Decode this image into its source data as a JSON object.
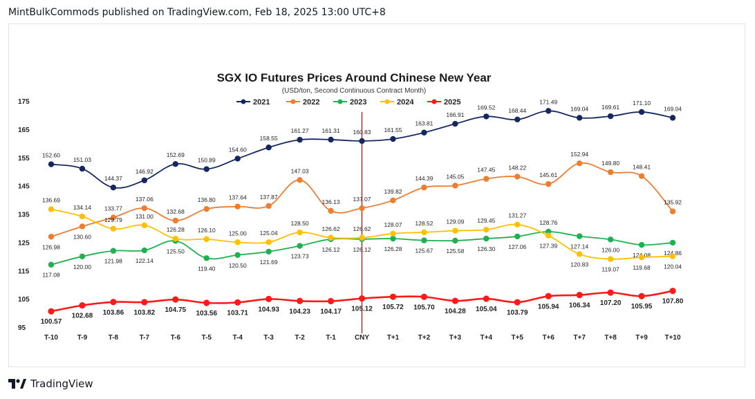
{
  "header": {
    "text": "MintBulkCommods published on TradingView.com, Feb 18, 2025 13:00 UTC+8"
  },
  "footer": {
    "brand": "TradingView",
    "logo_icon": "tradingview-logo-icon"
  },
  "chart_data": {
    "type": "line",
    "title": "SGX IO Futures Prices Around Chinese New Year",
    "subtitle": "(USD/ton, Second Continuous Contract Month)",
    "xlabel": "",
    "ylabel": "",
    "categories": [
      "T-10",
      "T-9",
      "T-8",
      "T-7",
      "T-6",
      "T-5",
      "T-4",
      "T-3",
      "T-2",
      "T-1",
      "CNY",
      "T+1",
      "T+2",
      "T+3",
      "T+4",
      "T+5",
      "T+6",
      "T+7",
      "T+8",
      "T+9",
      "T+10"
    ],
    "ylim": [
      95,
      175
    ],
    "yticks": [
      95,
      105,
      115,
      125,
      135,
      145,
      155,
      165,
      175
    ],
    "grid": false,
    "legend": "top-center",
    "marker_line_label": "CNY",
    "series": [
      {
        "name": "2021",
        "color": "#14285f",
        "label_pos": "above",
        "values": [
          152.6,
          151.03,
          144.37,
          146.92,
          152.69,
          150.89,
          154.6,
          158.55,
          161.27,
          161.31,
          160.83,
          161.55,
          163.81,
          166.91,
          169.52,
          168.44,
          171.49,
          169.04,
          169.61,
          171.1,
          169.04
        ]
      },
      {
        "name": "2022",
        "color": "#ed7d31",
        "label_pos": "above",
        "values": [
          126.98,
          130.6,
          133.77,
          137.06,
          132.68,
          136.8,
          137.64,
          137.87,
          147.03,
          136.13,
          137.07,
          139.82,
          144.39,
          145.05,
          147.45,
          148.22,
          145.61,
          152.94,
          149.8,
          148.41,
          135.92
        ]
      },
      {
        "name": "2023",
        "color": "#1fb04f",
        "label_pos": "below",
        "values": [
          117.08,
          120.0,
          121.98,
          122.14,
          125.5,
          119.4,
          120.5,
          121.69,
          123.73,
          126.12,
          126.12,
          126.28,
          125.67,
          125.58,
          126.3,
          127.06,
          128.76,
          127.14,
          126.0,
          124.08,
          124.86
        ]
      },
      {
        "name": "2024",
        "color": "#ffc000",
        "label_pos": "above",
        "values": [
          136.69,
          134.14,
          129.79,
          131.0,
          126.28,
          126.1,
          125.0,
          125.04,
          128.5,
          126.62,
          126.62,
          128.07,
          128.52,
          129.09,
          129.45,
          131.27,
          127.39,
          120.83,
          119.07,
          119.68,
          120.04
        ]
      },
      {
        "name": "2025",
        "color": "#ff1a1a",
        "label_pos": "below",
        "bold": true,
        "values": [
          100.57,
          102.68,
          103.86,
          103.82,
          104.75,
          103.56,
          103.71,
          104.93,
          104.23,
          104.17,
          105.12,
          105.72,
          105.7,
          104.28,
          105.04,
          103.79,
          105.94,
          106.34,
          107.2,
          105.95,
          107.8
        ]
      }
    ],
    "label_overrides": {
      "2021": {},
      "2022": {
        "0": "below",
        "1": "below",
        "4": "above",
        "9": "above"
      },
      "2023": {
        "16": "above",
        "14": "below"
      },
      "2024": {
        "16": "below",
        "17": "below",
        "18": "below",
        "19": "below",
        "20": "below",
        "0": "above"
      },
      "2025": {}
    }
  }
}
